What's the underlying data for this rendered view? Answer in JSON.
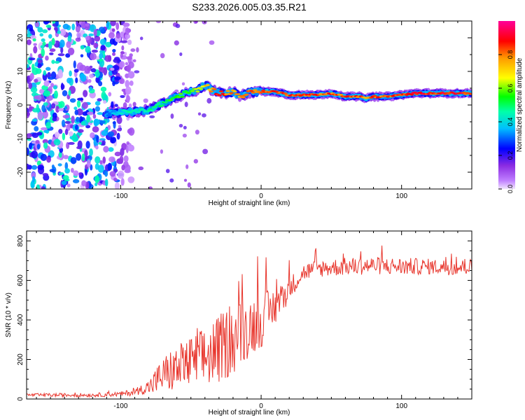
{
  "title": "S233.2026.005.03.35.R21",
  "chart_data": [
    {
      "type": "heatmap",
      "title": "S233.2026.005.03.35.R21",
      "xlabel": "Height of straight line (km)",
      "ylabel": "Frequency (Hz)",
      "xlim": [
        -167,
        150
      ],
      "ylim": [
        -25,
        25
      ],
      "x_ticks": [
        -100,
        0,
        100
      ],
      "y_ticks": [
        -20,
        -10,
        0,
        10,
        20
      ],
      "x_tick_labels": [
        "-100",
        "0",
        "100"
      ],
      "y_tick_labels": [
        "-20",
        "-10",
        "0",
        "10",
        "20"
      ],
      "colorbar": {
        "label": "Normalized spectral amplitude",
        "range": [
          0.0,
          1.0
        ],
        "ticks": [
          0.0,
          0.2,
          0.4,
          0.6,
          0.8
        ],
        "tick_labels": [
          "0.0",
          "0.2",
          "0.4",
          "0.6",
          "0.8"
        ],
        "colors": [
          "#f2e6ff",
          "#a64dff",
          "#0000ff",
          "#00ffff",
          "#00ff00",
          "#ffff00",
          "#ff7f00",
          "#ff0000",
          "#ff00aa"
        ]
      },
      "signal_trace": {
        "x": [
          -110,
          -105,
          -100,
          -90,
          -80,
          -70,
          -60,
          -50,
          -45,
          -40,
          -35,
          -30,
          -25,
          -20,
          -15,
          -10,
          -5,
          0,
          5,
          10,
          15,
          20,
          30,
          40,
          50,
          55,
          60,
          70,
          75,
          80,
          90,
          100,
          110,
          120,
          130,
          140,
          150
        ],
        "y": [
          -2.5,
          -2.5,
          -2.2,
          -2,
          -1.5,
          0.5,
          2.5,
          4,
          4.5,
          6,
          4.5,
          3.5,
          3.5,
          4,
          2.5,
          3.5,
          4,
          4,
          4,
          4,
          3.5,
          3,
          3,
          3,
          3.5,
          3,
          2.5,
          2.5,
          2,
          2.5,
          2.5,
          3,
          3.5,
          3.5,
          3.5,
          3.5,
          3.5
        ],
        "amp": [
          0.3,
          0.4,
          0.45,
          0.5,
          0.5,
          0.55,
          0.6,
          0.6,
          0.7,
          0.75,
          0.85,
          0.9,
          0.9,
          0.85,
          0.8,
          0.9,
          0.9,
          0.9,
          0.9,
          0.9,
          0.9,
          0.9,
          0.9,
          0.9,
          0.9,
          0.9,
          0.9,
          0.9,
          0.85,
          0.9,
          0.9,
          0.9,
          0.95,
          0.95,
          0.95,
          0.95,
          0.95
        ]
      }
    },
    {
      "type": "line",
      "xlabel": "Height of straight line (km)",
      "ylabel": "SNR (10 * v/v)",
      "xlim": [
        -167,
        150
      ],
      "ylim": [
        0,
        850
      ],
      "x_ticks": [
        -100,
        0,
        100
      ],
      "y_ticks": [
        0,
        200,
        400,
        600,
        800
      ],
      "x_tick_labels": [
        "-100",
        "0",
        "100"
      ],
      "y_tick_labels": [
        "0",
        "200",
        "400",
        "600",
        "800"
      ],
      "color": "#e8372e",
      "envelope": {
        "x": [
          -167,
          -120,
          -100,
          -90,
          -85,
          -80,
          -75,
          -70,
          -65,
          -60,
          -55,
          -50,
          -45,
          -40,
          -35,
          -30,
          -25,
          -20,
          -15,
          -10,
          -5,
          0,
          5,
          10,
          15,
          20,
          25,
          30,
          40,
          60,
          80,
          100,
          120,
          140,
          150
        ],
        "mean": [
          20,
          20,
          25,
          35,
          50,
          60,
          90,
          120,
          140,
          150,
          170,
          180,
          190,
          210,
          230,
          250,
          280,
          300,
          330,
          360,
          380,
          400,
          430,
          470,
          510,
          560,
          600,
          640,
          660,
          670,
          675,
          670,
          670,
          665,
          670
        ],
        "spread": [
          8,
          10,
          12,
          18,
          25,
          40,
          70,
          90,
          110,
          120,
          130,
          140,
          150,
          160,
          170,
          175,
          180,
          180,
          170,
          160,
          150,
          140,
          120,
          100,
          80,
          60,
          50,
          45,
          45,
          45,
          45,
          45,
          40,
          40,
          40
        ]
      }
    }
  ]
}
